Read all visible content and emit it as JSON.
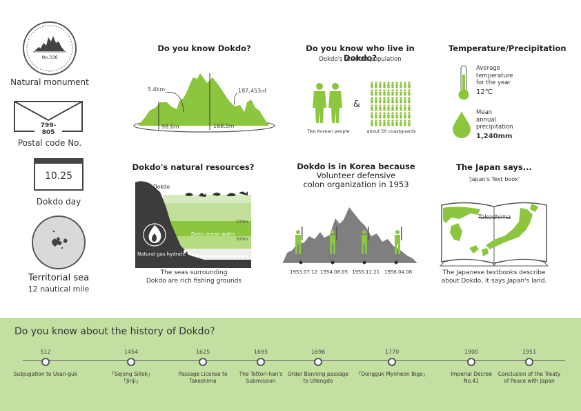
{
  "left_column": {
    "monument_badge": "No.336",
    "monument_label": "Natural monument",
    "postal_code": "799-805",
    "postal_label": "Postal code No.",
    "day_date": "10.25",
    "day_label": "Dokdo day",
    "sea_label": "Territorial sea",
    "sea_sub": "12 nautical mile"
  },
  "know_dokdo": {
    "title": "Do you know Dokdo?",
    "height_label": "5.4km",
    "area_label": "187,453㎡",
    "west_peak": "98.6m",
    "east_peak": "168.5m"
  },
  "residents": {
    "title": "Do you know who live in Dokdo?",
    "subtitle": "Dokdo's resident population",
    "ampersand": "&",
    "people_label": "Two Korean people",
    "guards_label": "about 50 coastguards"
  },
  "climate": {
    "title": "Temperature/Precipitation",
    "temp_text_1": "Average",
    "temp_text_2": "temperature",
    "temp_text_3": "for the year",
    "temp_value": "12℃",
    "precip_text_1": "Mean",
    "precip_text_2": "annual",
    "precip_text_3": "precipitation",
    "precip_value": "1,240mm"
  },
  "resources": {
    "title": "Dokdo's natural resources?",
    "island_label": "Dokdo",
    "depth_200": "200m",
    "depth_300": "300m",
    "deep_water": "Deep ocean water",
    "gas_label": "Natural gas hydrate",
    "caption_1": "The seas surrounding",
    "caption_2": "Dokdo are rich fishing grounds"
  },
  "korea": {
    "title_1": "Dokdo is in Korea because",
    "title_2": "Volunteer defensive",
    "title_3": "colon organization in 1953",
    "dates": [
      "1953.07.12",
      "1954.08.05",
      "1955.11.21",
      "1956.04.08"
    ]
  },
  "japan": {
    "title": "The Japan says...",
    "subtitle": "'Japan's Text book'",
    "map_label": "Takeshima",
    "caption_1": "The Japanese textbooks describe",
    "caption_2": "about Dokdo, it says Japan's land."
  },
  "history": {
    "title": "Do you know about the history of Dokdo?",
    "events": [
      {
        "year": "512",
        "text": "Subjugation to Usan-guk"
      },
      {
        "year": "1454",
        "text": "「Sejong Sillok」「Jiriji」"
      },
      {
        "year": "1625",
        "text": "Passage License to Takeshima"
      },
      {
        "year": "1695",
        "text": "The Tottori-han's Submission"
      },
      {
        "year": "1696",
        "text": "Order Banning passage to Ullengdo"
      },
      {
        "year": "1770",
        "text": "「Dongguk Mynheon Bigo」"
      },
      {
        "year": "1900",
        "text": "Imperial Decree No.41"
      },
      {
        "year": "1951",
        "text": "Conclusion of the Treaty of Peace with Japan"
      }
    ]
  },
  "colors": {
    "green": "#8cc63f",
    "dark_gray": "#3c3c3c",
    "band": "#c4dfa2"
  }
}
